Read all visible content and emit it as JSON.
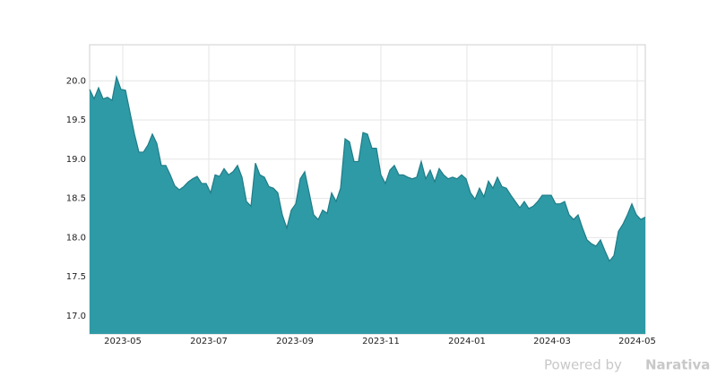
{
  "chart_data": {
    "type": "area",
    "values": [
      19.89,
      19.77,
      19.91,
      19.77,
      19.79,
      19.75,
      20.05,
      19.89,
      19.88,
      19.6,
      19.32,
      19.09,
      19.09,
      19.18,
      19.32,
      19.2,
      18.92,
      18.92,
      18.8,
      18.66,
      18.61,
      18.65,
      18.71,
      18.75,
      18.78,
      18.69,
      18.69,
      18.57,
      18.8,
      18.78,
      18.88,
      18.8,
      18.84,
      18.92,
      18.77,
      18.46,
      18.4,
      18.95,
      18.8,
      18.77,
      18.65,
      18.63,
      18.57,
      18.29,
      18.12,
      18.35,
      18.43,
      18.75,
      18.84,
      18.57,
      18.29,
      18.23,
      18.35,
      18.31,
      18.57,
      18.46,
      18.63,
      19.26,
      19.22,
      18.97,
      18.97,
      19.34,
      19.32,
      19.14,
      19.14,
      18.8,
      18.69,
      18.86,
      18.92,
      18.8,
      18.8,
      18.77,
      18.75,
      18.77,
      18.97,
      18.75,
      18.86,
      18.71,
      18.88,
      18.8,
      18.75,
      18.77,
      18.75,
      18.8,
      18.75,
      18.57,
      18.49,
      18.63,
      18.52,
      18.72,
      18.63,
      18.77,
      18.65,
      18.63,
      18.54,
      18.46,
      18.38,
      18.46,
      18.37,
      18.4,
      18.46,
      18.54,
      18.54,
      18.54,
      18.43,
      18.43,
      18.46,
      18.29,
      18.23,
      18.29,
      18.12,
      17.97,
      17.92,
      17.89,
      17.97,
      17.83,
      17.7,
      17.77,
      18.08,
      18.17,
      18.29,
      18.43,
      18.29,
      18.23,
      18.26
    ],
    "color": "#2e9aa5",
    "line_color": "#1f7d88",
    "xlim": [
      0,
      124
    ],
    "xticks": [
      {
        "value": 7.4,
        "label": "2023-05"
      },
      {
        "value": 26.6,
        "label": "2023-07"
      },
      {
        "value": 45.8,
        "label": "2023-09"
      },
      {
        "value": 65,
        "label": "2023-11"
      },
      {
        "value": 84.2,
        "label": "2024-01"
      },
      {
        "value": 103.2,
        "label": "2024-03"
      },
      {
        "value": 122.2,
        "label": "2024-05"
      }
    ],
    "ylim": [
      16.77,
      20.46
    ],
    "yticks": [
      {
        "value": 17,
        "label": "17.0"
      },
      {
        "value": 17.5,
        "label": "17.5"
      },
      {
        "value": 18,
        "label": "18.0"
      },
      {
        "value": 18.5,
        "label": "18.5"
      },
      {
        "value": 19,
        "label": "19.0"
      },
      {
        "value": 19.5,
        "label": "19.5"
      },
      {
        "value": 20,
        "label": "20.0"
      }
    ],
    "grid": true,
    "watermark": "Powered by",
    "brand": "Narativa"
  }
}
